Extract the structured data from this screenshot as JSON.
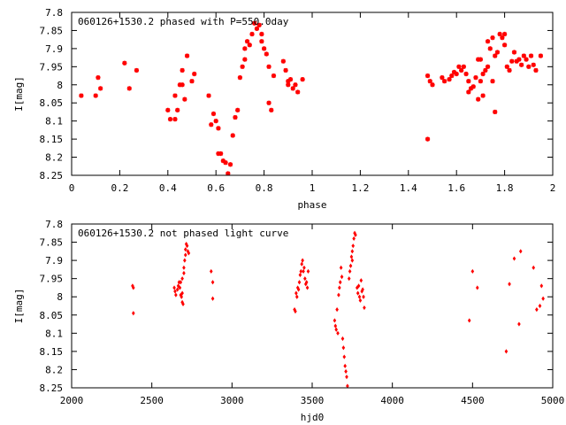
{
  "chart_data": [
    {
      "type": "scatter",
      "title": "060126+1530.2 phased with P=550.0day",
      "xlabel": "phase",
      "ylabel": "I[mag]",
      "xlim": [
        0,
        2
      ],
      "ylim": [
        7.8,
        8.25
      ],
      "y_inverted": true,
      "grid": false,
      "legend": "none",
      "marker": "star",
      "color": "#ff0000",
      "x_ticks": [
        "0",
        "0.2",
        "0.4",
        "0.6",
        "0.8",
        "1",
        "1.2",
        "1.4",
        "1.6",
        "1.8",
        "2"
      ],
      "y_ticks": [
        "7.8",
        "7.85",
        "7.9",
        "7.95",
        "8",
        "8.05",
        "8.1",
        "8.15",
        "8.2",
        "8.25"
      ],
      "points": [
        [
          0.04,
          8.03
        ],
        [
          0.1,
          8.03
        ],
        [
          0.11,
          7.98
        ],
        [
          0.12,
          8.01
        ],
        [
          0.22,
          7.94
        ],
        [
          0.24,
          8.01
        ],
        [
          0.27,
          7.96
        ],
        [
          0.4,
          8.07
        ],
        [
          0.41,
          8.095
        ],
        [
          0.43,
          8.03
        ],
        [
          0.43,
          8.095
        ],
        [
          0.44,
          8.07
        ],
        [
          0.45,
          8.0
        ],
        [
          0.46,
          8.0
        ],
        [
          0.46,
          7.96
        ],
        [
          0.47,
          8.04
        ],
        [
          0.48,
          7.92
        ],
        [
          0.5,
          7.99
        ],
        [
          0.51,
          7.97
        ],
        [
          0.57,
          8.03
        ],
        [
          0.58,
          8.11
        ],
        [
          0.59,
          8.08
        ],
        [
          0.6,
          8.1
        ],
        [
          0.61,
          8.12
        ],
        [
          0.61,
          8.19
        ],
        [
          0.62,
          8.19
        ],
        [
          0.63,
          8.21
        ],
        [
          0.64,
          8.215
        ],
        [
          0.65,
          8.245
        ],
        [
          0.66,
          8.22
        ],
        [
          0.67,
          8.14
        ],
        [
          0.68,
          8.09
        ],
        [
          0.69,
          8.07
        ],
        [
          0.7,
          7.98
        ],
        [
          0.71,
          7.95
        ],
        [
          0.72,
          7.93
        ],
        [
          0.72,
          7.9
        ],
        [
          0.73,
          7.88
        ],
        [
          0.74,
          7.89
        ],
        [
          0.75,
          7.86
        ],
        [
          0.76,
          7.83
        ],
        [
          0.77,
          7.845
        ],
        [
          0.78,
          7.835
        ],
        [
          0.79,
          7.86
        ],
        [
          0.79,
          7.88
        ],
        [
          0.8,
          7.9
        ],
        [
          0.81,
          7.915
        ],
        [
          0.82,
          7.95
        ],
        [
          0.82,
          8.05
        ],
        [
          0.83,
          8.07
        ],
        [
          0.84,
          7.975
        ],
        [
          0.88,
          7.935
        ],
        [
          0.89,
          7.96
        ],
        [
          0.9,
          7.99
        ],
        [
          0.9,
          8.0
        ],
        [
          0.91,
          7.985
        ],
        [
          0.92,
          8.01
        ],
        [
          0.93,
          8.0
        ],
        [
          0.94,
          8.02
        ],
        [
          0.96,
          7.985
        ],
        [
          1.48,
          7.975
        ],
        [
          1.48,
          8.15
        ],
        [
          1.49,
          7.99
        ],
        [
          1.5,
          8.0
        ],
        [
          1.54,
          7.98
        ],
        [
          1.55,
          7.99
        ],
        [
          1.57,
          7.985
        ],
        [
          1.58,
          7.975
        ],
        [
          1.59,
          7.965
        ],
        [
          1.6,
          7.97
        ],
        [
          1.61,
          7.95
        ],
        [
          1.62,
          7.96
        ],
        [
          1.63,
          7.95
        ],
        [
          1.64,
          7.97
        ],
        [
          1.65,
          7.99
        ],
        [
          1.65,
          8.02
        ],
        [
          1.66,
          8.01
        ],
        [
          1.67,
          8.005
        ],
        [
          1.68,
          7.98
        ],
        [
          1.69,
          7.93
        ],
        [
          1.69,
          8.04
        ],
        [
          1.7,
          7.93
        ],
        [
          1.7,
          7.99
        ],
        [
          1.71,
          8.03
        ],
        [
          1.71,
          7.97
        ],
        [
          1.72,
          7.96
        ],
        [
          1.73,
          7.95
        ],
        [
          1.73,
          7.88
        ],
        [
          1.74,
          7.9
        ],
        [
          1.75,
          7.87
        ],
        [
          1.75,
          7.99
        ],
        [
          1.76,
          8.075
        ],
        [
          1.76,
          7.92
        ],
        [
          1.77,
          7.91
        ],
        [
          1.78,
          7.86
        ],
        [
          1.79,
          7.87
        ],
        [
          1.8,
          7.86
        ],
        [
          1.8,
          7.89
        ],
        [
          1.81,
          7.95
        ],
        [
          1.82,
          7.96
        ],
        [
          1.83,
          7.935
        ],
        [
          1.84,
          7.91
        ],
        [
          1.85,
          7.935
        ],
        [
          1.86,
          7.93
        ],
        [
          1.87,
          7.945
        ],
        [
          1.88,
          7.92
        ],
        [
          1.89,
          7.93
        ],
        [
          1.9,
          7.95
        ],
        [
          1.91,
          7.92
        ],
        [
          1.92,
          7.945
        ],
        [
          1.93,
          7.96
        ],
        [
          1.95,
          7.92
        ]
      ]
    },
    {
      "type": "scatter",
      "title": "060126+1530.2 not phased light curve",
      "xlabel": "hjd0",
      "ylabel": "I[mag]",
      "xlim": [
        2000,
        5000
      ],
      "ylim": [
        7.8,
        8.25
      ],
      "y_inverted": true,
      "grid": false,
      "legend": "none",
      "marker": "diamond",
      "color": "#ff0000",
      "x_ticks": [
        "2000",
        "2500",
        "3000",
        "3500",
        "4000",
        "4500",
        "5000"
      ],
      "y_ticks": [
        "7.8",
        "7.85",
        "7.9",
        "7.95",
        "8",
        "8.05",
        "8.1",
        "8.15",
        "8.2",
        "8.25"
      ],
      "points": [
        [
          2380,
          7.97
        ],
        [
          2385,
          7.975
        ],
        [
          2385,
          8.045
        ],
        [
          2640,
          7.975
        ],
        [
          2645,
          7.985
        ],
        [
          2650,
          7.995
        ],
        [
          2660,
          7.98
        ],
        [
          2665,
          7.97
        ],
        [
          2670,
          7.96
        ],
        [
          2675,
          7.975
        ],
        [
          2680,
          7.995
        ],
        [
          2685,
          8.0
        ],
        [
          2690,
          7.99
        ],
        [
          2690,
          8.015
        ],
        [
          2695,
          8.02
        ],
        [
          2680,
          7.96
        ],
        [
          2690,
          7.95
        ],
        [
          2700,
          7.935
        ],
        [
          2700,
          7.92
        ],
        [
          2705,
          7.9
        ],
        [
          2710,
          7.885
        ],
        [
          2710,
          7.87
        ],
        [
          2715,
          7.855
        ],
        [
          2720,
          7.86
        ],
        [
          2725,
          7.875
        ],
        [
          2730,
          7.88
        ],
        [
          2870,
          7.93
        ],
        [
          2880,
          7.96
        ],
        [
          2880,
          8.005
        ],
        [
          3390,
          8.035
        ],
        [
          3395,
          8.04
        ],
        [
          3400,
          7.99
        ],
        [
          3405,
          8.0
        ],
        [
          3410,
          7.975
        ],
        [
          3415,
          7.98
        ],
        [
          3420,
          7.96
        ],
        [
          3425,
          7.94
        ],
        [
          3430,
          7.93
        ],
        [
          3435,
          7.91
        ],
        [
          3440,
          7.9
        ],
        [
          3445,
          7.93
        ],
        [
          3450,
          7.92
        ],
        [
          3455,
          7.95
        ],
        [
          3460,
          7.965
        ],
        [
          3465,
          7.96
        ],
        [
          3470,
          7.975
        ],
        [
          3475,
          7.93
        ],
        [
          3640,
          8.065
        ],
        [
          3645,
          8.08
        ],
        [
          3650,
          8.09
        ],
        [
          3655,
          8.035
        ],
        [
          3660,
          8.1
        ],
        [
          3665,
          7.995
        ],
        [
          3670,
          7.975
        ],
        [
          3675,
          7.96
        ],
        [
          3680,
          7.92
        ],
        [
          3685,
          7.945
        ],
        [
          3690,
          8.115
        ],
        [
          3695,
          8.14
        ],
        [
          3700,
          8.165
        ],
        [
          3705,
          8.19
        ],
        [
          3710,
          8.205
        ],
        [
          3715,
          8.22
        ],
        [
          3720,
          8.245
        ],
        [
          3730,
          7.95
        ],
        [
          3735,
          7.93
        ],
        [
          3740,
          7.915
        ],
        [
          3745,
          7.89
        ],
        [
          3750,
          7.875
        ],
        [
          3750,
          7.9
        ],
        [
          3755,
          7.86
        ],
        [
          3760,
          7.84
        ],
        [
          3765,
          7.825
        ],
        [
          3770,
          7.83
        ],
        [
          3780,
          7.975
        ],
        [
          3785,
          7.99
        ],
        [
          3790,
          7.97
        ],
        [
          3795,
          8.0
        ],
        [
          3800,
          8.01
        ],
        [
          3805,
          7.955
        ],
        [
          3810,
          7.985
        ],
        [
          3815,
          7.98
        ],
        [
          3820,
          8.0
        ],
        [
          3825,
          8.03
        ],
        [
          4480,
          8.065
        ],
        [
          4500,
          7.93
        ],
        [
          4530,
          7.975
        ],
        [
          4710,
          8.15
        ],
        [
          4730,
          7.965
        ],
        [
          4760,
          7.895
        ],
        [
          4790,
          8.075
        ],
        [
          4800,
          7.875
        ],
        [
          4880,
          7.92
        ],
        [
          4900,
          8.035
        ],
        [
          4920,
          8.025
        ],
        [
          4930,
          7.97
        ],
        [
          4940,
          8.005
        ]
      ]
    }
  ]
}
